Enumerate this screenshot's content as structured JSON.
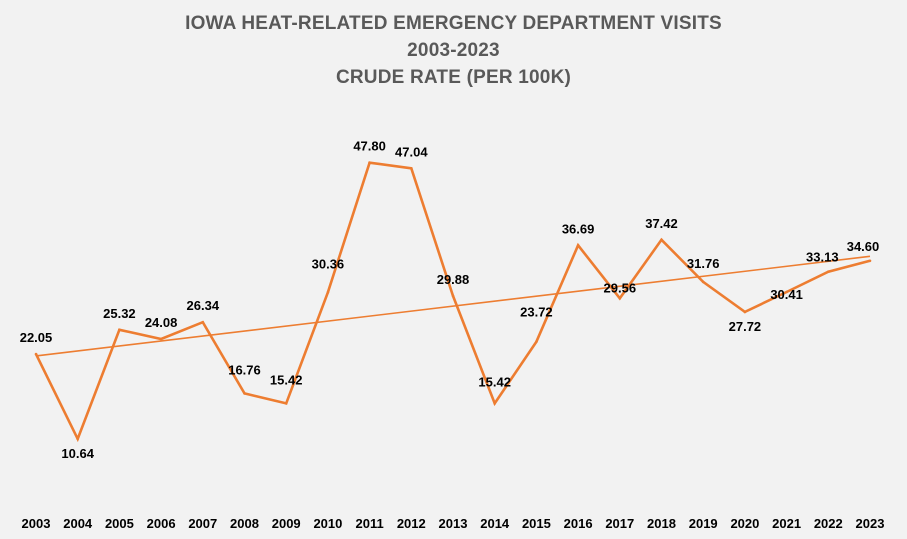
{
  "chart_data": {
    "type": "line",
    "title_lines": [
      "IOWA HEAT-RELATED EMERGENCY DEPARTMENT VISITS",
      "2003-2023",
      "CRUDE RATE (PER 100K)"
    ],
    "xlabel": "",
    "ylabel": "",
    "categories": [
      "2003",
      "2004",
      "2005",
      "2006",
      "2007",
      "2008",
      "2009",
      "2010",
      "2011",
      "2012",
      "2013",
      "2014",
      "2015",
      "2016",
      "2017",
      "2018",
      "2019",
      "2020",
      "2021",
      "2022",
      "2023"
    ],
    "series": [
      {
        "name": "Crude Rate (per 100K)",
        "values": [
          22.05,
          10.64,
          25.32,
          24.08,
          26.34,
          16.76,
          15.42,
          30.36,
          47.8,
          47.04,
          29.88,
          15.42,
          23.72,
          36.69,
          29.56,
          37.42,
          31.76,
          27.72,
          30.41,
          33.13,
          34.6
        ],
        "labels": [
          "22.05",
          "10.64",
          "25.32",
          "24.08",
          "26.34",
          "16.76",
          "15.42",
          "30.36",
          "47.80",
          "47.04",
          "29.88",
          "15.42",
          "23.72",
          "36.69",
          "29.56",
          "37.42",
          "31.76",
          "27.72",
          "30.41",
          "33.13",
          "34.60"
        ],
        "color": "#ed7d31"
      }
    ],
    "trendline": {
      "type": "linear",
      "start_value": 21.8,
      "end_value": 35.2,
      "color": "#ed7d31"
    },
    "ylim": [
      0,
      60
    ],
    "grid": false,
    "legend": "none",
    "background": "#f2f2f2"
  }
}
